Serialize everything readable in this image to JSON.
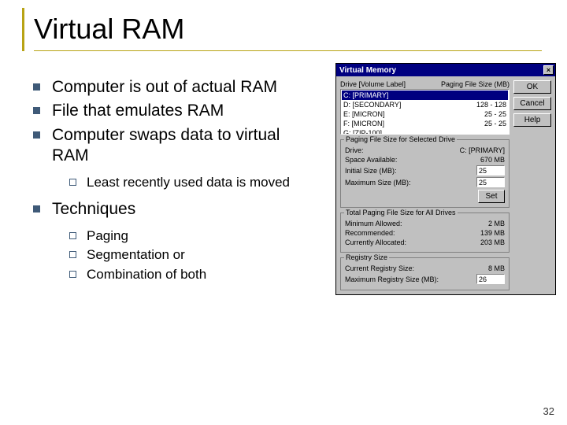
{
  "slide": {
    "title": "Virtual RAM",
    "page_number": "32",
    "bullets": [
      {
        "text": "Computer is out of actual RAM"
      },
      {
        "text": "File that emulates RAM"
      },
      {
        "text": "Computer swaps data to virtual RAM",
        "children": [
          {
            "text": "Least recently used data is moved"
          }
        ]
      },
      {
        "text": "Techniques",
        "children": [
          {
            "text": "Paging"
          },
          {
            "text": "Segmentation or"
          },
          {
            "text": "Combination of both"
          }
        ]
      }
    ]
  },
  "colors": {
    "accent_rule": "#b8a314",
    "bullet_fill": "#3f5a78",
    "titlebar_bg": "#000080",
    "dialog_bg": "#c0c0c0"
  },
  "dialog": {
    "title": "Virtual Memory",
    "close_glyph": "×",
    "buttons": {
      "ok": "OK",
      "cancel": "Cancel",
      "help": "Help",
      "set": "Set"
    },
    "list": {
      "hdr_drive": "Drive [Volume Label]",
      "hdr_size": "Paging File Size (MB)",
      "rows": [
        {
          "left": "C:    [PRIMARY]",
          "right": ""
        },
        {
          "left": "D:    [SECONDARY]",
          "right": "128 - 128"
        },
        {
          "left": "E:    [MICRON]",
          "right": "25 - 25"
        },
        {
          "left": "F:    [MICRON]",
          "right": "25 - 25"
        },
        {
          "left": "G:    [ZIP-100]",
          "right": ""
        }
      ]
    },
    "selected_group": {
      "title": "Paging File Size for Selected Drive",
      "drive_label": "Drive:",
      "drive_value": "C:  [PRIMARY]",
      "space_label": "Space Available:",
      "space_value": "670 MB",
      "initial_label": "Initial Size (MB):",
      "initial_value": "25",
      "max_label": "Maximum Size (MB):",
      "max_value": "25"
    },
    "total_group": {
      "title": "Total Paging File Size for All Drives",
      "min_label": "Minimum Allowed:",
      "min_value": "2 MB",
      "rec_label": "Recommended:",
      "rec_value": "139 MB",
      "cur_label": "Currently Allocated:",
      "cur_value": "203 MB"
    },
    "registry_group": {
      "title": "Registry Size",
      "cur_label": "Current Registry Size:",
      "cur_value": "8 MB",
      "max_label": "Maximum Registry Size (MB):",
      "max_value": "26"
    }
  }
}
